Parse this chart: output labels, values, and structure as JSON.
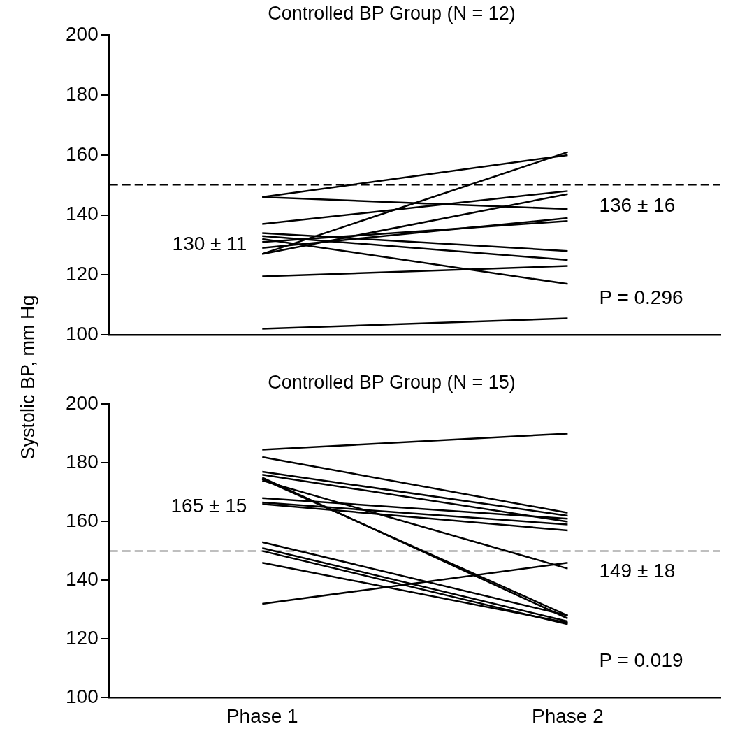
{
  "chart_data": [
    {
      "type": "line",
      "title": "Controlled BP Group (N = 12)",
      "ylabel": "Systolic BP, mm Hg",
      "categories": [
        "Phase 1",
        "Phase 2"
      ],
      "ylim": [
        100,
        200
      ],
      "yticks": [
        100,
        120,
        140,
        160,
        180,
        200
      ],
      "tick_labels": "y",
      "marker": "none",
      "line_style": "solid",
      "legend": false,
      "grid": false,
      "series": [
        {
          "color": "#000000",
          "values": [
            146,
            160
          ]
        },
        {
          "color": "#000000",
          "values": [
            146,
            142
          ]
        },
        {
          "color": "#000000",
          "values": [
            127,
            161
          ]
        },
        {
          "color": "#000000",
          "values": [
            137,
            148
          ]
        },
        {
          "color": "#000000",
          "values": [
            127,
            147
          ]
        },
        {
          "color": "#000000",
          "values": [
            129,
            139
          ]
        },
        {
          "color": "#000000",
          "values": [
            131,
            138
          ]
        },
        {
          "color": "#000000",
          "values": [
            134,
            128
          ]
        },
        {
          "color": "#000000",
          "values": [
            133,
            125
          ]
        },
        {
          "color": "#000000",
          "values": [
            132,
            117
          ]
        },
        {
          "color": "#000000",
          "values": [
            119.5,
            123
          ]
        },
        {
          "color": "#000000",
          "values": [
            102,
            105.5
          ]
        }
      ],
      "ref_lines": [
        {
          "axis": "y",
          "value": 150,
          "line_style": "dashed"
        }
      ],
      "annotations": [
        {
          "text": "130 ± 11",
          "x": "Phase 1",
          "y": 130
        },
        "136 ± 16",
        "P = 0.296"
      ]
    },
    {
      "type": "line",
      "title": "Controlled BP Group (N = 15)",
      "categories": [
        "Phase 1",
        "Phase 2"
      ],
      "ylim": [
        100,
        200
      ],
      "yticks": [
        100,
        120,
        140,
        160,
        180,
        200
      ],
      "marker": "none",
      "line_style": "solid",
      "legend": false,
      "grid": false,
      "series": [
        {
          "color": "#000000",
          "values": [
            184.5,
            190
          ]
        },
        {
          "color": "#000000",
          "values": [
            182,
            163
          ]
        },
        {
          "color": "#000000",
          "values": [
            177,
            162
          ]
        },
        {
          "color": "#000000",
          "values": [
            176,
            160
          ]
        },
        {
          "color": "#000000",
          "values": [
            174,
            144
          ]
        },
        {
          "color": "#000000",
          "values": [
            174.5,
            128
          ]
        },
        {
          "color": "#000000",
          "values": [
            175,
            127
          ]
        },
        {
          "color": "#000000",
          "values": [
            168,
            161
          ]
        },
        {
          "color": "#000000",
          "values": [
            166.5,
            159
          ]
        },
        {
          "color": "#000000",
          "values": [
            166,
            157
          ]
        },
        {
          "color": "#000000",
          "values": [
            153,
            128
          ]
        },
        {
          "color": "#000000",
          "values": [
            151,
            126
          ]
        },
        {
          "color": "#000000",
          "values": [
            150,
            125
          ]
        },
        {
          "color": "#000000",
          "values": [
            146,
            125.5
          ]
        },
        {
          "color": "#000000",
          "values": [
            132,
            146
          ]
        }
      ],
      "ref_lines": [
        {
          "axis": "y",
          "value": 150,
          "line_style": "dashed"
        }
      ],
      "annotations": [
        {
          "text": "165 ± 15",
          "x": "Phase 1",
          "y": 165
        },
        "149 ± 18",
        "P = 0.019"
      ]
    }
  ]
}
